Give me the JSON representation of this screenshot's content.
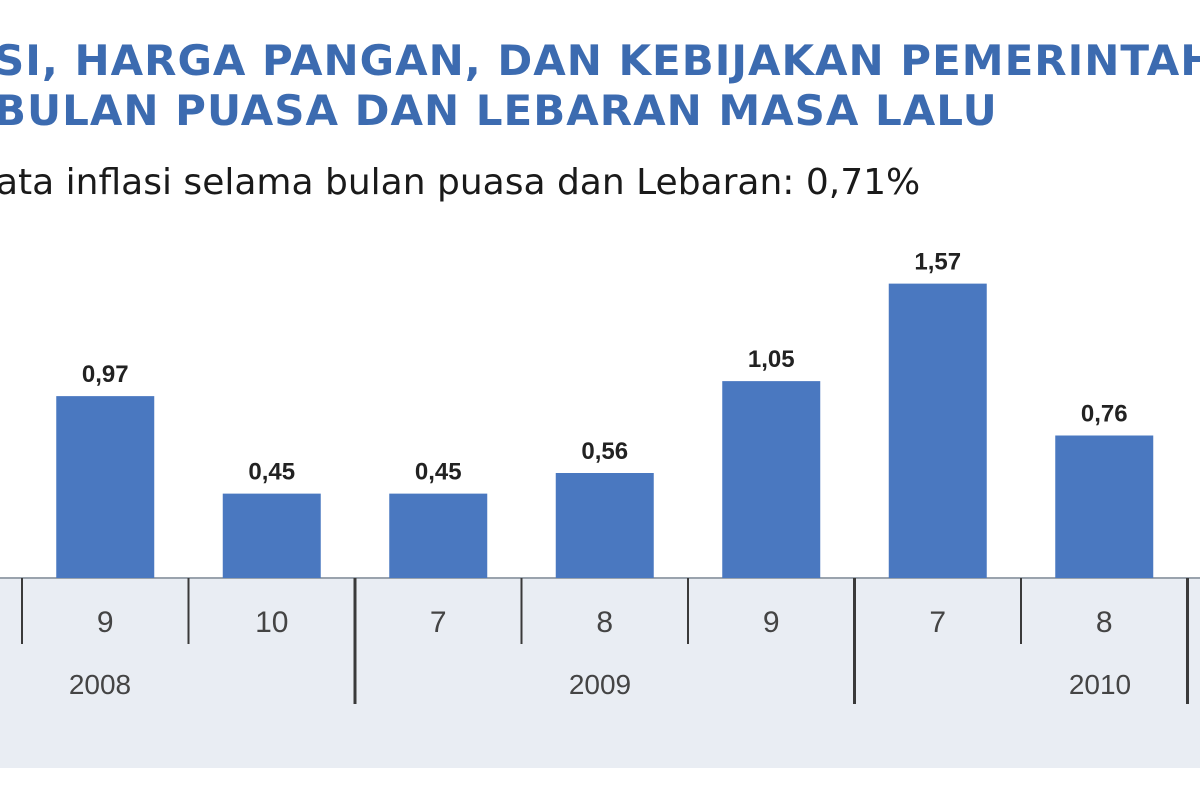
{
  "header": {
    "title_line1": "SI, HARGA PANGAN, DAN KEBIJAKAN PEMERINTAH",
    "title_line2": "BULAN PUASA DAN LEBARAN MASA LALU",
    "subtitle": "ata inflasi selama bulan puasa dan Lebaran: 0,71%"
  },
  "colors": {
    "title": "#3c6bb0",
    "bar": "#4a78c0",
    "axis_band": "#e9edf3",
    "separator": "#3a3a3a"
  },
  "chart_data": {
    "type": "bar",
    "decimal_separator": ",",
    "ylim": [
      0,
      1.6
    ],
    "grid": false,
    "legend": "none",
    "bars": [
      {
        "month": "9",
        "year": "2008",
        "value": 0.97,
        "label": "0,97"
      },
      {
        "month": "10",
        "year": "2008",
        "value": 0.45,
        "label": "0,45"
      },
      {
        "month": "7",
        "year": "2009",
        "value": 0.45,
        "label": "0,45"
      },
      {
        "month": "8",
        "year": "2009",
        "value": 0.56,
        "label": "0,56"
      },
      {
        "month": "9",
        "year": "2009",
        "value": 1.05,
        "label": "1,05"
      },
      {
        "month": "7",
        "year": "2010",
        "value": 1.57,
        "label": "1,57"
      },
      {
        "month": "8",
        "year": "2010",
        "value": 0.76,
        "label": "0,76"
      }
    ],
    "year_groups": [
      "2008",
      "2009",
      "2010"
    ]
  }
}
